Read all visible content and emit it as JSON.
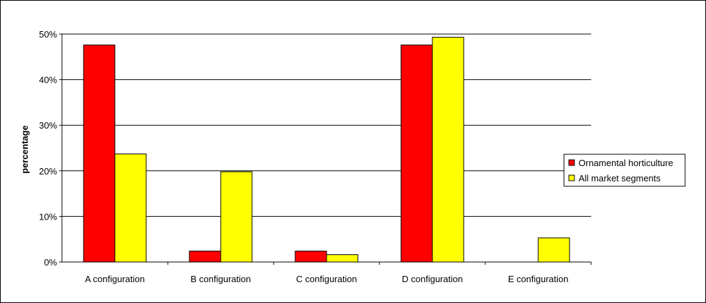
{
  "chart_data": {
    "type": "bar",
    "title": "",
    "xlabel": "",
    "ylabel": "percentage",
    "ylim": [
      0,
      50
    ],
    "y_ticks": [
      "0%",
      "10%",
      "20%",
      "30%",
      "40%",
      "50%"
    ],
    "y_tick_values": [
      0,
      10,
      20,
      30,
      40,
      50
    ],
    "grid": true,
    "legend_position": "right",
    "categories": [
      "A configuration",
      "B configuration",
      "C configuration",
      "D configuration",
      "E configuration"
    ],
    "series": [
      {
        "name": "Ornamental horticulture",
        "color": "#ff0000",
        "values": [
          47.6,
          2.4,
          2.4,
          47.6,
          0
        ]
      },
      {
        "name": "All market segments",
        "color": "#ffff00",
        "values": [
          23.7,
          19.8,
          1.6,
          49.3,
          5.3
        ]
      }
    ]
  }
}
